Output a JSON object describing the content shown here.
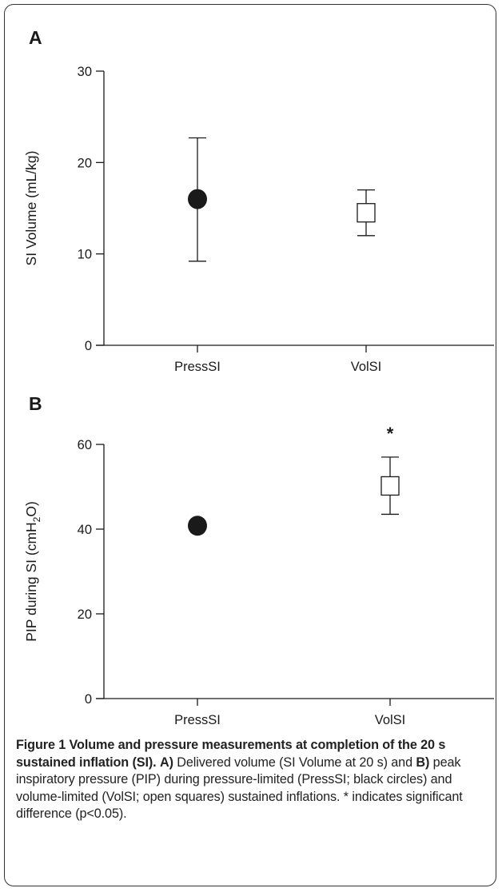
{
  "chart_data": [
    {
      "type": "scatter",
      "panel": "A",
      "ylabel": "SI Volume (mL/kg)",
      "ylim": [
        0,
        30
      ],
      "yticks": [
        "0",
        "10",
        "20",
        "30"
      ],
      "categories": [
        "PressSI",
        "VolSI"
      ],
      "series": [
        {
          "name": "PressSI",
          "marker": "filled-circle",
          "values": [
            16
          ],
          "err_low": [
            9.2
          ],
          "err_high": [
            22.7
          ]
        },
        {
          "name": "VolSI",
          "marker": "open-square",
          "values": [
            14.5
          ],
          "err_low": [
            12.0
          ],
          "err_high": [
            17.0
          ]
        }
      ],
      "annotations": []
    },
    {
      "type": "scatter",
      "panel": "B",
      "ylabel_parts": [
        "PIP during SI (cmH",
        "2",
        "O)"
      ],
      "ylim": [
        0,
        60
      ],
      "yticks": [
        "0",
        "20",
        "40",
        "60"
      ],
      "categories": [
        "PressSI",
        "VolSI"
      ],
      "series": [
        {
          "name": "PressSI",
          "marker": "filled-circle",
          "values": [
            40.8
          ],
          "err_low": [
            40.8
          ],
          "err_high": [
            40.8
          ]
        },
        {
          "name": "VolSI",
          "marker": "open-square",
          "values": [
            50.2
          ],
          "err_low": [
            43.5
          ],
          "err_high": [
            57.0
          ]
        }
      ],
      "annotations": [
        {
          "category": "VolSI",
          "text": "*"
        }
      ]
    }
  ],
  "caption": {
    "title": "Figure 1 Volume and pressure measurements at completion of the 20 s sustained inflation (SI).",
    "a_label": "A)",
    "a_text": " Delivered volume (SI Volume at 20 s) and ",
    "b_label": "B)",
    "b_text": " peak inspiratory pressure (PIP) during pressure-limited (PressSI; black circles) and volume-limited (VolSI; open squares) sustained inflations. * indicates significant difference (p<0.05)."
  },
  "colors": {
    "ink": "#1a1a1a",
    "frame": "#333333"
  }
}
